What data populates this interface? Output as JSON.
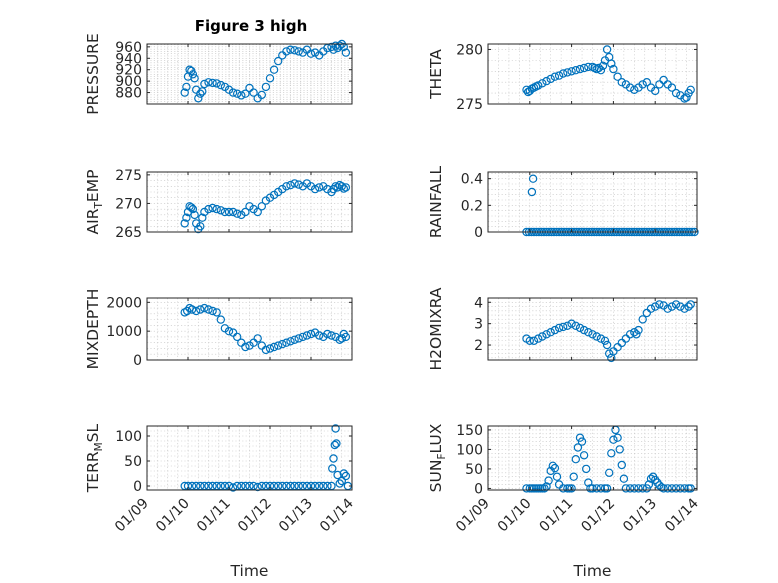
{
  "figure": {
    "title": "Figure 3 high",
    "marker_color": "#0072bd"
  },
  "chart_data": [
    {
      "id": "pressure",
      "type": "scatter",
      "ylabel": "PRESSURE",
      "xlim": [
        0,
        5
      ],
      "ylim": [
        860,
        965
      ],
      "yticks": [
        880,
        900,
        920,
        940,
        960
      ],
      "xticks": [
        "01/09",
        "01/10",
        "01/11",
        "01/12",
        "01/13",
        "01/14"
      ],
      "x": [
        0.92,
        0.96,
        1.0,
        1.04,
        1.08,
        1.12,
        1.16,
        1.2,
        1.25,
        1.3,
        1.35,
        1.4,
        1.5,
        1.6,
        1.7,
        1.8,
        1.9,
        2.0,
        2.1,
        2.2,
        2.3,
        2.4,
        2.5,
        2.6,
        2.7,
        2.8,
        2.9,
        3.0,
        3.1,
        3.2,
        3.3,
        3.4,
        3.5,
        3.6,
        3.7,
        3.8,
        3.9,
        4.0,
        4.1,
        4.2,
        4.3,
        4.4,
        4.5,
        4.55,
        4.6,
        4.65,
        4.7,
        4.75,
        4.8,
        4.85
      ],
      "y": [
        880,
        890,
        908,
        920,
        918,
        912,
        905,
        885,
        870,
        878,
        882,
        895,
        898,
        897,
        896,
        893,
        890,
        885,
        880,
        878,
        875,
        878,
        888,
        880,
        870,
        876,
        890,
        905,
        920,
        935,
        945,
        952,
        955,
        954,
        952,
        950,
        955,
        948,
        950,
        945,
        952,
        958,
        960,
        955,
        962,
        958,
        962,
        965,
        960,
        950
      ]
    },
    {
      "id": "theta",
      "type": "scatter",
      "ylabel": "THETA",
      "xlim": [
        0,
        5
      ],
      "ylim": [
        275,
        280.5
      ],
      "yticks": [
        275,
        280
      ],
      "xticks": [
        "01/09",
        "01/10",
        "01/11",
        "01/12",
        "01/13",
        "01/14"
      ],
      "x": [
        0.92,
        0.96,
        1.0,
        1.05,
        1.1,
        1.15,
        1.2,
        1.3,
        1.4,
        1.5,
        1.6,
        1.7,
        1.8,
        1.9,
        2.0,
        2.1,
        2.2,
        2.3,
        2.4,
        2.5,
        2.55,
        2.6,
        2.65,
        2.7,
        2.75,
        2.8,
        2.85,
        2.9,
        2.95,
        3.0,
        3.1,
        3.2,
        3.3,
        3.4,
        3.5,
        3.6,
        3.7,
        3.8,
        3.9,
        4.0,
        4.1,
        4.2,
        4.3,
        4.4,
        4.5,
        4.6,
        4.7,
        4.75,
        4.8,
        4.85
      ],
      "y": [
        276.3,
        276.1,
        276.2,
        276.4,
        276.5,
        276.6,
        276.7,
        276.9,
        277.1,
        277.3,
        277.5,
        277.6,
        277.8,
        277.9,
        278.0,
        278.1,
        278.2,
        278.3,
        278.4,
        278.4,
        278.3,
        278.2,
        278.3,
        278.1,
        278.5,
        279.0,
        280.0,
        279.3,
        278.7,
        278.2,
        277.5,
        277.0,
        276.8,
        276.5,
        276.3,
        276.5,
        276.8,
        277.0,
        276.5,
        276.2,
        276.8,
        277.2,
        276.8,
        276.5,
        276.0,
        275.8,
        275.5,
        275.6,
        276.0,
        276.3
      ]
    },
    {
      "id": "air_temp",
      "type": "scatter",
      "ylabel": "AIR",
      "ylabel_sub": "T",
      "ylabel_tail": "EMP",
      "xlim": [
        0,
        5
      ],
      "ylim": [
        265,
        275.5
      ],
      "yticks": [
        265,
        270,
        275
      ],
      "xticks": [
        "01/09",
        "01/10",
        "01/11",
        "01/12",
        "01/13",
        "01/14"
      ],
      "x": [
        0.92,
        0.96,
        1.0,
        1.04,
        1.08,
        1.12,
        1.16,
        1.2,
        1.25,
        1.3,
        1.35,
        1.4,
        1.5,
        1.6,
        1.7,
        1.8,
        1.9,
        2.0,
        2.1,
        2.2,
        2.3,
        2.4,
        2.5,
        2.6,
        2.7,
        2.8,
        2.9,
        3.0,
        3.1,
        3.2,
        3.3,
        3.4,
        3.5,
        3.6,
        3.7,
        3.8,
        3.9,
        4.0,
        4.1,
        4.2,
        4.3,
        4.4,
        4.5,
        4.55,
        4.6,
        4.65,
        4.7,
        4.75,
        4.8,
        4.85
      ],
      "y": [
        266.5,
        267.5,
        268.5,
        269.5,
        269.3,
        269.0,
        268.0,
        266.5,
        265.5,
        266.0,
        267.5,
        268.5,
        269.0,
        269.2,
        269.0,
        268.8,
        268.5,
        268.5,
        268.5,
        268.2,
        268.0,
        268.5,
        269.5,
        269.0,
        268.5,
        269.5,
        270.5,
        271.0,
        271.5,
        272.0,
        272.5,
        273.0,
        273.2,
        273.5,
        273.3,
        273.0,
        273.5,
        273.0,
        272.5,
        272.8,
        273.0,
        272.5,
        272.0,
        272.5,
        273.0,
        272.8,
        273.2,
        273.0,
        272.6,
        272.8
      ]
    },
    {
      "id": "rainfall",
      "type": "scatter",
      "ylabel": "RAINFALL",
      "xlim": [
        0,
        5
      ],
      "ylim": [
        0,
        0.45
      ],
      "yticks": [
        0,
        0.2,
        0.4
      ],
      "xticks": [
        "01/09",
        "01/10",
        "01/11",
        "01/12",
        "01/13",
        "01/14"
      ],
      "x": [
        0.92,
        0.98,
        1.04,
        1.1,
        1.16,
        1.22,
        1.28,
        1.34,
        1.4,
        1.46,
        1.52,
        1.58,
        1.64,
        1.7,
        1.76,
        1.82,
        1.88,
        1.94,
        2.0,
        2.06,
        2.12,
        2.18,
        2.24,
        2.3,
        2.36,
        2.42,
        2.48,
        2.54,
        2.6,
        2.66,
        2.72,
        2.78,
        2.84,
        2.9,
        2.96,
        3.02,
        3.08,
        3.14,
        3.2,
        3.26,
        3.32,
        3.38,
        3.44,
        3.5,
        3.56,
        3.62,
        3.68,
        3.74,
        3.8,
        3.86,
        3.92,
        3.98,
        4.04,
        4.1,
        4.16,
        4.22,
        4.28,
        4.34,
        4.4,
        4.46,
        4.52,
        4.58,
        4.64,
        4.7,
        4.76,
        4.82,
        4.88,
        4.94,
        1.05,
        1.08
      ],
      "y": [
        0,
        0,
        0,
        0,
        0,
        0,
        0,
        0,
        0,
        0,
        0,
        0,
        0,
        0,
        0,
        0,
        0,
        0,
        0,
        0,
        0,
        0,
        0,
        0,
        0,
        0,
        0,
        0,
        0,
        0,
        0,
        0,
        0,
        0,
        0,
        0,
        0,
        0,
        0,
        0,
        0,
        0,
        0,
        0,
        0,
        0,
        0,
        0,
        0,
        0,
        0,
        0,
        0,
        0,
        0,
        0,
        0,
        0,
        0,
        0,
        0,
        0,
        0,
        0,
        0,
        0,
        0,
        0,
        0.3,
        0.4
      ]
    },
    {
      "id": "mixdepth",
      "type": "scatter",
      "ylabel": "MIXDEPTH",
      "xlim": [
        0,
        5
      ],
      "ylim": [
        0,
        2150
      ],
      "yticks": [
        0,
        1000,
        2000
      ],
      "xticks": [
        "01/09",
        "01/10",
        "01/11",
        "01/12",
        "01/13",
        "01/14"
      ],
      "x": [
        0.92,
        0.98,
        1.04,
        1.1,
        1.2,
        1.3,
        1.4,
        1.5,
        1.6,
        1.7,
        1.8,
        1.9,
        2.0,
        2.1,
        2.2,
        2.3,
        2.4,
        2.5,
        2.6,
        2.7,
        2.8,
        2.9,
        3.0,
        3.1,
        3.2,
        3.3,
        3.4,
        3.5,
        3.6,
        3.7,
        3.8,
        3.9,
        4.0,
        4.1,
        4.2,
        4.3,
        4.4,
        4.5,
        4.6,
        4.7,
        4.75,
        4.8,
        4.85
      ],
      "y": [
        1650,
        1700,
        1800,
        1750,
        1700,
        1750,
        1800,
        1750,
        1700,
        1650,
        1400,
        1100,
        1000,
        950,
        800,
        600,
        450,
        500,
        600,
        750,
        500,
        350,
        400,
        450,
        500,
        550,
        600,
        650,
        700,
        750,
        800,
        850,
        900,
        950,
        850,
        800,
        900,
        850,
        800,
        700,
        750,
        900,
        800
      ]
    },
    {
      "id": "h2omixra",
      "type": "scatter",
      "ylabel": "H2OMIXRA",
      "xlim": [
        0,
        5
      ],
      "ylim": [
        1.3,
        4.2
      ],
      "yticks": [
        2,
        3,
        4
      ],
      "xticks": [
        "01/09",
        "01/10",
        "01/11",
        "01/12",
        "01/13",
        "01/14"
      ],
      "x": [
        0.92,
        1.0,
        1.1,
        1.2,
        1.3,
        1.4,
        1.5,
        1.6,
        1.7,
        1.8,
        1.9,
        2.0,
        2.1,
        2.2,
        2.3,
        2.4,
        2.5,
        2.6,
        2.7,
        2.8,
        2.85,
        2.9,
        2.95,
        3.0,
        3.1,
        3.2,
        3.3,
        3.4,
        3.5,
        3.55,
        3.6,
        3.7,
        3.8,
        3.9,
        4.0,
        4.1,
        4.2,
        4.3,
        4.4,
        4.5,
        4.6,
        4.7,
        4.8,
        4.85
      ],
      "y": [
        2.3,
        2.2,
        2.2,
        2.3,
        2.4,
        2.5,
        2.6,
        2.7,
        2.8,
        2.85,
        2.9,
        3.0,
        2.9,
        2.8,
        2.7,
        2.6,
        2.5,
        2.4,
        2.3,
        2.2,
        2.0,
        1.6,
        1.4,
        1.7,
        1.9,
        2.1,
        2.3,
        2.5,
        2.6,
        2.5,
        2.7,
        3.2,
        3.5,
        3.7,
        3.8,
        3.9,
        3.85,
        3.7,
        3.8,
        3.9,
        3.8,
        3.7,
        3.8,
        3.9
      ]
    },
    {
      "id": "terr_msl",
      "type": "scatter",
      "ylabel": "TERR",
      "ylabel_sub": "M",
      "ylabel_tail": "SL",
      "xlim": [
        0,
        5
      ],
      "ylim": [
        -8,
        120
      ],
      "yticks": [
        0,
        50,
        100
      ],
      "xticks": [
        "01/09",
        "01/10",
        "01/11",
        "01/12",
        "01/13",
        "01/14"
      ],
      "x": [
        0.92,
        1.0,
        1.1,
        1.2,
        1.3,
        1.4,
        1.5,
        1.6,
        1.7,
        1.8,
        1.9,
        2.0,
        2.1,
        2.2,
        2.3,
        2.4,
        2.5,
        2.6,
        2.7,
        2.8,
        2.9,
        3.0,
        3.1,
        3.2,
        3.3,
        3.4,
        3.5,
        3.6,
        3.7,
        3.8,
        3.9,
        4.0,
        4.1,
        4.2,
        4.3,
        4.4,
        4.5,
        4.52,
        4.55,
        4.58,
        4.6,
        4.62,
        4.65,
        4.7,
        4.75,
        4.8,
        4.85,
        4.9
      ],
      "y": [
        0,
        0,
        0,
        0,
        0,
        0,
        0,
        0,
        0,
        0,
        0,
        0,
        -3,
        0,
        0,
        0,
        0,
        0,
        -2,
        0,
        0,
        0,
        0,
        0,
        0,
        0,
        0,
        0,
        0,
        0,
        0,
        0,
        0,
        0,
        0,
        0,
        0,
        35,
        55,
        82,
        115,
        85,
        22,
        5,
        10,
        25,
        20,
        0
      ]
    },
    {
      "id": "sun_flux",
      "type": "scatter",
      "ylabel": "SUN",
      "ylabel_sub": "F",
      "ylabel_tail": "LUX",
      "xlim": [
        0,
        5
      ],
      "ylim": [
        -4,
        160
      ],
      "yticks": [
        0,
        50,
        100,
        150
      ],
      "xticks": [
        "01/09",
        "01/10",
        "01/11",
        "01/12",
        "01/13",
        "01/14"
      ],
      "x": [
        0.92,
        1.0,
        1.05,
        1.1,
        1.15,
        1.2,
        1.25,
        1.3,
        1.35,
        1.4,
        1.45,
        1.5,
        1.55,
        1.6,
        1.65,
        1.7,
        1.8,
        1.9,
        1.95,
        2.0,
        2.05,
        2.1,
        2.15,
        2.2,
        2.25,
        2.3,
        2.35,
        2.4,
        2.45,
        2.5,
        2.6,
        2.7,
        2.8,
        2.85,
        2.9,
        2.95,
        3.0,
        3.05,
        3.1,
        3.15,
        3.2,
        3.25,
        3.3,
        3.4,
        3.5,
        3.6,
        3.7,
        3.8,
        3.85,
        3.9,
        3.95,
        4.0,
        4.05,
        4.1,
        4.15,
        4.2,
        4.3,
        4.4,
        4.5,
        4.6,
        4.7,
        4.8,
        4.85
      ],
      "y": [
        0,
        0,
        0,
        0,
        0,
        0,
        0,
        0,
        0,
        5,
        20,
        45,
        58,
        52,
        30,
        10,
        0,
        0,
        0,
        0,
        30,
        75,
        105,
        130,
        120,
        85,
        50,
        15,
        0,
        0,
        0,
        0,
        0,
        0,
        40,
        90,
        125,
        150,
        130,
        100,
        60,
        25,
        0,
        0,
        0,
        0,
        0,
        0,
        10,
        25,
        30,
        22,
        15,
        8,
        3,
        0,
        0,
        0,
        0,
        0,
        0,
        0,
        0
      ]
    }
  ]
}
